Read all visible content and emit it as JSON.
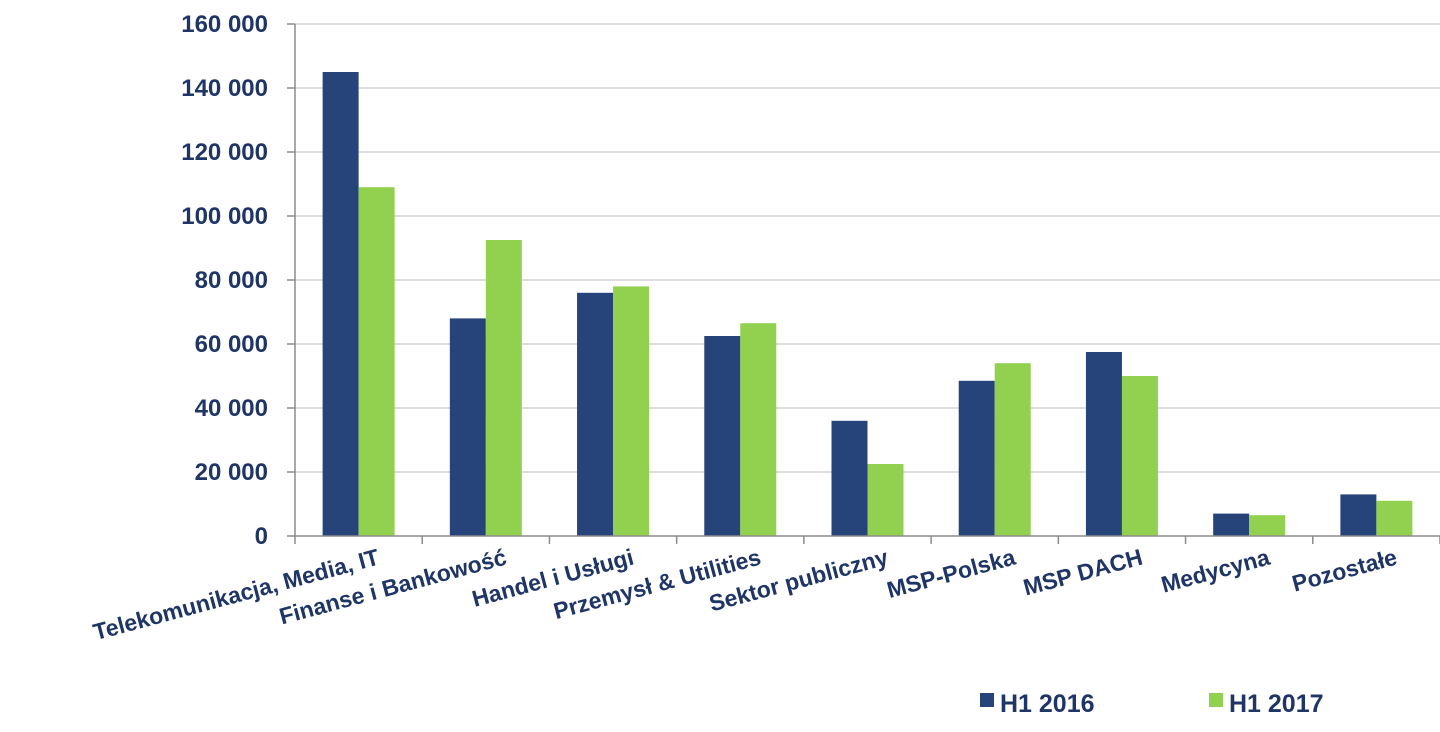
{
  "chart_data": {
    "type": "bar",
    "title": "",
    "xlabel": "",
    "ylabel": "",
    "ylim": [
      0,
      160000
    ],
    "yticks": [
      0,
      20000,
      40000,
      60000,
      80000,
      100000,
      120000,
      140000,
      160000
    ],
    "ytick_labels": [
      "0",
      "20 000",
      "40 000",
      "60 000",
      "80 000",
      "100 000",
      "120 000",
      "140 000",
      "160 000"
    ],
    "grid": true,
    "legend_position": "bottom-right",
    "categories": [
      "Telekomunikacja, Media, IT",
      "Finanse i Bankowość",
      "Handel i Usługi",
      "Przemysł & Utilities",
      "Sektor publiczny",
      "MSP-Polska",
      "MSP DACH",
      "Medycyna",
      "Pozostałe"
    ],
    "series": [
      {
        "name": "H1 2016",
        "color": "#26437a",
        "values": [
          145000,
          68000,
          76000,
          62500,
          36000,
          48500,
          57500,
          7000,
          13000
        ]
      },
      {
        "name": "H1 2017",
        "color": "#92d050",
        "values": [
          109000,
          92500,
          78000,
          66500,
          22500,
          54000,
          50000,
          6500,
          11000
        ]
      }
    ]
  }
}
